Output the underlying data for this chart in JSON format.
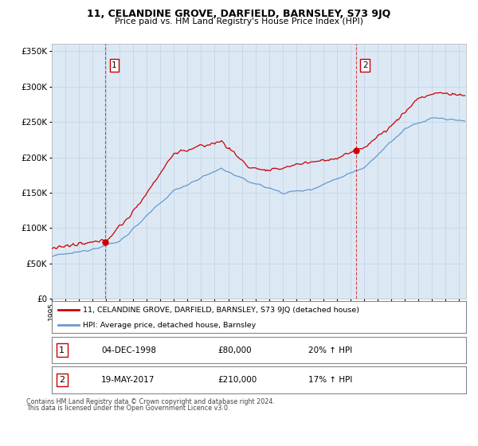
{
  "title": "11, CELANDINE GROVE, DARFIELD, BARNSLEY, S73 9JQ",
  "subtitle": "Price paid vs. HM Land Registry's House Price Index (HPI)",
  "legend_line1": "11, CELANDINE GROVE, DARFIELD, BARNSLEY, S73 9JQ (detached house)",
  "legend_line2": "HPI: Average price, detached house, Barnsley",
  "sale1_label": "1",
  "sale1_date": "04-DEC-1998",
  "sale1_price": "£80,000",
  "sale1_hpi": "20% ↑ HPI",
  "sale2_label": "2",
  "sale2_date": "19-MAY-2017",
  "sale2_price": "£210,000",
  "sale2_hpi": "17% ↑ HPI",
  "footnote1": "Contains HM Land Registry data © Crown copyright and database right 2024.",
  "footnote2": "This data is licensed under the Open Government Licence v3.0.",
  "red_color": "#cc0000",
  "blue_color": "#6699cc",
  "bg_color": "#dce9f5",
  "grid_color": "#c8d8e8",
  "sale1_x": 1998.92,
  "sale1_y": 80000,
  "sale2_x": 2017.38,
  "sale2_y": 210000,
  "xmin": 1995.0,
  "xmax": 2025.5,
  "ymin": 0,
  "ymax": 360000,
  "yticks": [
    0,
    50000,
    100000,
    150000,
    200000,
    250000,
    300000,
    350000
  ],
  "ytick_labels": [
    "£0",
    "£50K",
    "£100K",
    "£150K",
    "£200K",
    "£250K",
    "£300K",
    "£350K"
  ]
}
